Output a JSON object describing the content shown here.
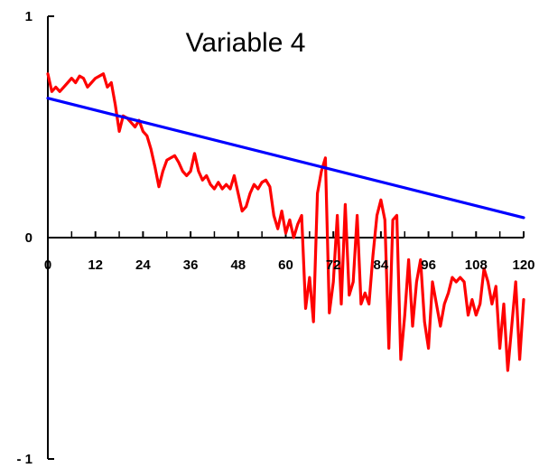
{
  "chart_data": {
    "type": "line",
    "title": "Variable 4",
    "xlabel": "",
    "ylabel": "",
    "xlim": [
      0,
      120
    ],
    "ylim": [
      -1,
      1
    ],
    "x_ticks": [
      "0",
      "12",
      "24",
      "36",
      "48",
      "60",
      "72",
      "84",
      "96",
      "108",
      "120"
    ],
    "y_ticks": [
      "1",
      "0",
      "- 1"
    ],
    "y_tick_values": [
      1,
      0,
      -1
    ],
    "grid": false,
    "legend": "none",
    "series": [
      {
        "color": "#ff0000",
        "x": [
          0,
          1,
          2,
          3,
          4,
          5,
          6,
          7,
          8,
          9,
          10,
          11,
          12,
          13,
          14,
          15,
          16,
          17,
          18,
          19,
          20,
          21,
          22,
          23,
          24,
          25,
          26,
          27,
          28,
          29,
          30,
          31,
          32,
          33,
          34,
          35,
          36,
          37,
          38,
          39,
          40,
          41,
          42,
          43,
          44,
          45,
          46,
          47,
          48,
          49,
          50,
          51,
          52,
          53,
          54,
          55,
          56,
          57,
          58,
          59,
          60,
          61,
          62,
          63,
          64,
          65,
          66,
          67,
          68,
          69,
          70,
          71,
          72,
          73,
          74,
          75,
          76,
          77,
          78,
          79,
          80,
          81,
          82,
          83,
          84,
          85,
          86,
          87,
          88,
          89,
          90,
          91,
          92,
          93,
          94,
          95,
          96,
          97,
          98,
          99,
          100,
          101,
          102,
          103,
          104,
          105,
          106,
          107,
          108,
          109,
          110,
          111,
          112,
          113,
          114,
          115,
          116,
          117,
          118,
          119,
          120
        ],
        "values": [
          0.74,
          0.66,
          0.68,
          0.66,
          0.68,
          0.7,
          0.72,
          0.7,
          0.73,
          0.72,
          0.68,
          0.7,
          0.72,
          0.73,
          0.74,
          0.68,
          0.7,
          0.6,
          0.48,
          0.55,
          0.54,
          0.52,
          0.5,
          0.53,
          0.48,
          0.46,
          0.4,
          0.32,
          0.23,
          0.3,
          0.35,
          0.36,
          0.37,
          0.34,
          0.3,
          0.28,
          0.3,
          0.38,
          0.3,
          0.26,
          0.28,
          0.24,
          0.22,
          0.25,
          0.22,
          0.24,
          0.22,
          0.28,
          0.2,
          0.12,
          0.14,
          0.2,
          0.24,
          0.22,
          0.25,
          0.26,
          0.23,
          0.1,
          0.04,
          0.12,
          0.02,
          0.08,
          0.0,
          0.06,
          0.1,
          -0.32,
          -0.18,
          -0.38,
          0.2,
          0.3,
          0.36,
          -0.34,
          -0.2,
          0.1,
          -0.3,
          0.15,
          -0.26,
          -0.2,
          0.1,
          -0.3,
          -0.25,
          -0.3,
          -0.08,
          0.1,
          0.17,
          0.08,
          -0.5,
          0.08,
          0.1,
          -0.55,
          -0.35,
          -0.1,
          -0.4,
          -0.2,
          -0.1,
          -0.38,
          -0.5,
          -0.2,
          -0.3,
          -0.4,
          -0.3,
          -0.25,
          -0.18,
          -0.2,
          -0.18,
          -0.2,
          -0.35,
          -0.28,
          -0.35,
          -0.3,
          -0.14,
          -0.2,
          -0.3,
          -0.22,
          -0.5,
          -0.3,
          -0.6,
          -0.4,
          -0.2,
          -0.55,
          -0.28
        ]
      },
      {
        "color": "#0000ff",
        "x": [
          0,
          120
        ],
        "values": [
          0.63,
          0.09
        ]
      }
    ]
  }
}
